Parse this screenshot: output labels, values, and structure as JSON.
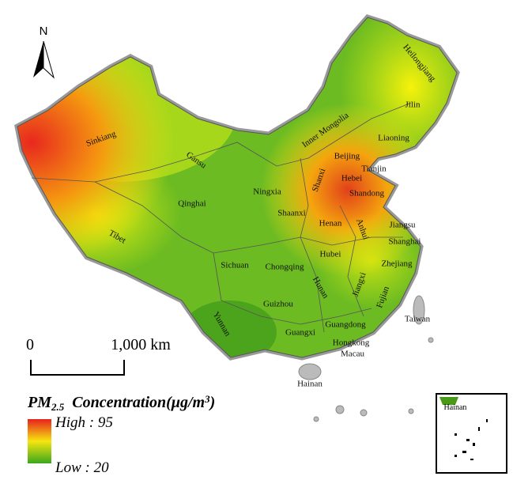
{
  "north": "N",
  "scale": {
    "start": "0",
    "end": "1,000 km"
  },
  "legend": {
    "title_main": "PM",
    "title_sub": "2.5",
    "title_rest": "Concentration(μg/m",
    "title_sup": "3",
    "title_close": ")",
    "high": "High : 95",
    "low": "Low : 20"
  },
  "labels": [
    "Heilongjiang",
    "Jilin",
    "Liaoning",
    "Inner Mongolia",
    "Beijing",
    "Tianjin",
    "Hebei",
    "Shandong",
    "Shanxi",
    "Ningxia",
    "Gansu",
    "Sinkiang",
    "Qinghai",
    "Tibet",
    "Shaanxi",
    "Henan",
    "Anhui",
    "Jiangsu",
    "Shanghai",
    "Hubei",
    "Zhejiang",
    "Sichuan",
    "Chongqing",
    "Hunan",
    "Jiangxi",
    "Fujian",
    "Guizhou",
    "Yunnan",
    "Guangxi",
    "Guangdong",
    "Taiwan",
    "Hongkong",
    "Macau",
    "Hainan"
  ],
  "inset_label": "Hainan"
}
